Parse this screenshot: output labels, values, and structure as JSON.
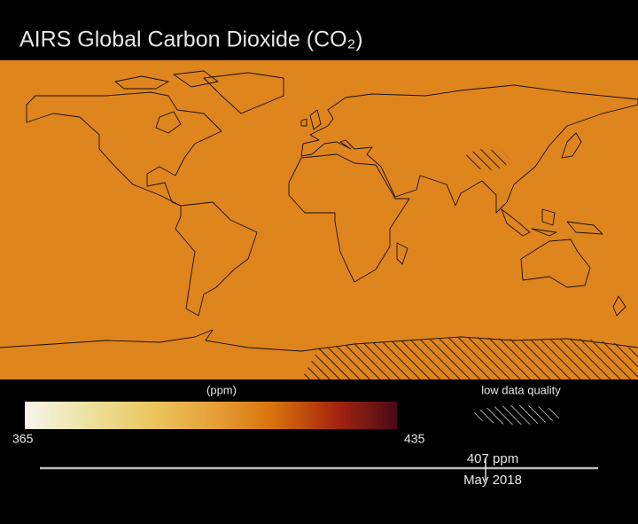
{
  "title": "AIRS Global Carbon Dioxide (CO₂)",
  "colorbar": {
    "unit": "(ppm)",
    "min": 365,
    "max": 435,
    "colors": [
      "#f7f4ee",
      "#ede3a0",
      "#eac862",
      "#e8a23a",
      "#d8720c",
      "#a8260e",
      "#4a0a18"
    ]
  },
  "legend": {
    "label": "low data quality"
  },
  "timeline": {
    "reading": {
      "value": 407,
      "label": "407 ppm"
    },
    "date": "May 2018"
  }
}
